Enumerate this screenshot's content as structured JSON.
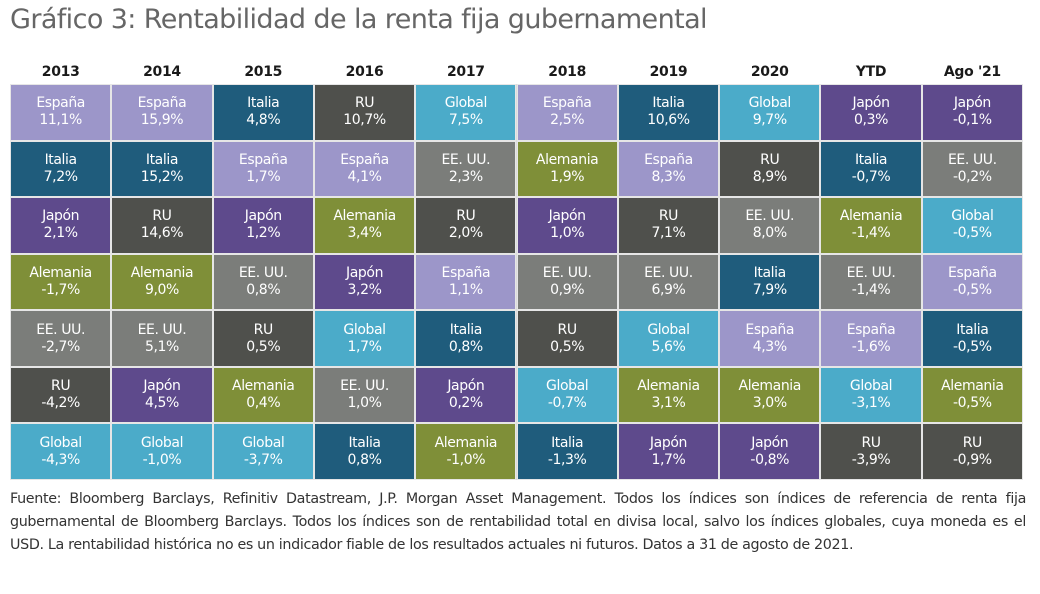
{
  "chart_data": {
    "type": "table",
    "title": "Gráfico 3: Rentabilidad de la renta fija gubernamental",
    "columns": [
      "2013",
      "2014",
      "2015",
      "2016",
      "2017",
      "2018",
      "2019",
      "2020",
      "YTD",
      "Ago '21"
    ],
    "colors": {
      "España": "#9c96c9",
      "Italia": "#1f5c7c",
      "Japón": "#5e4a8c",
      "Alemania": "#7f8f38",
      "EE. UU.": "#7b7d7a",
      "RU": "#4f504c",
      "Global": "#4babc9"
    },
    "ranks": [
      [
        {
          "name": "España",
          "value": "11,1%"
        },
        {
          "name": "España",
          "value": "15,9%"
        },
        {
          "name": "Italia",
          "value": "4,8%"
        },
        {
          "name": "RU",
          "value": "10,7%"
        },
        {
          "name": "Global",
          "value": "7,5%"
        },
        {
          "name": "España",
          "value": "2,5%"
        },
        {
          "name": "Italia",
          "value": "10,6%"
        },
        {
          "name": "Global",
          "value": "9,7%"
        },
        {
          "name": "Japón",
          "value": "0,3%"
        },
        {
          "name": "Japón",
          "value": "-0,1%"
        }
      ],
      [
        {
          "name": "Italia",
          "value": "7,2%"
        },
        {
          "name": "Italia",
          "value": "15,2%"
        },
        {
          "name": "España",
          "value": "1,7%"
        },
        {
          "name": "España",
          "value": "4,1%"
        },
        {
          "name": "EE. UU.",
          "value": "2,3%"
        },
        {
          "name": "Alemania",
          "value": "1,9%"
        },
        {
          "name": "España",
          "value": "8,3%"
        },
        {
          "name": "RU",
          "value": "8,9%"
        },
        {
          "name": "Italia",
          "value": "-0,7%"
        },
        {
          "name": "EE. UU.",
          "value": "-0,2%"
        }
      ],
      [
        {
          "name": "Japón",
          "value": "2,1%"
        },
        {
          "name": "RU",
          "value": "14,6%"
        },
        {
          "name": "Japón",
          "value": "1,2%"
        },
        {
          "name": "Alemania",
          "value": "3,4%"
        },
        {
          "name": "RU",
          "value": "2,0%"
        },
        {
          "name": "Japón",
          "value": "1,0%"
        },
        {
          "name": "RU",
          "value": "7,1%"
        },
        {
          "name": "EE. UU.",
          "value": "8,0%"
        },
        {
          "name": "Alemania",
          "value": "-1,4%"
        },
        {
          "name": "Global",
          "value": "-0,5%"
        }
      ],
      [
        {
          "name": "Alemania",
          "value": "-1,7%"
        },
        {
          "name": "Alemania",
          "value": "9,0%"
        },
        {
          "name": "EE. UU.",
          "value": "0,8%"
        },
        {
          "name": "Japón",
          "value": "3,2%"
        },
        {
          "name": "España",
          "value": "1,1%"
        },
        {
          "name": "EE. UU.",
          "value": "0,9%"
        },
        {
          "name": "EE. UU.",
          "value": "6,9%"
        },
        {
          "name": "Italia",
          "value": "7,9%"
        },
        {
          "name": "EE. UU.",
          "value": "-1,4%"
        },
        {
          "name": "España",
          "value": "-0,5%"
        }
      ],
      [
        {
          "name": "EE. UU.",
          "value": "-2,7%"
        },
        {
          "name": "EE. UU.",
          "value": "5,1%"
        },
        {
          "name": "RU",
          "value": "0,5%"
        },
        {
          "name": "Global",
          "value": "1,7%"
        },
        {
          "name": "Italia",
          "value": "0,8%"
        },
        {
          "name": "RU",
          "value": "0,5%"
        },
        {
          "name": "Global",
          "value": "5,6%"
        },
        {
          "name": "España",
          "value": "4,3%"
        },
        {
          "name": "España",
          "value": "-1,6%"
        },
        {
          "name": "Italia",
          "value": "-0,5%"
        }
      ],
      [
        {
          "name": "RU",
          "value": "-4,2%"
        },
        {
          "name": "Japón",
          "value": "4,5%"
        },
        {
          "name": "Alemania",
          "value": "0,4%"
        },
        {
          "name": "EE. UU.",
          "value": "1,0%"
        },
        {
          "name": "Japón",
          "value": "0,2%"
        },
        {
          "name": "Global",
          "value": "-0,7%"
        },
        {
          "name": "Alemania",
          "value": "3,1%"
        },
        {
          "name": "Alemania",
          "value": "3,0%"
        },
        {
          "name": "Global",
          "value": "-3,1%"
        },
        {
          "name": "Alemania",
          "value": "-0,5%"
        }
      ],
      [
        {
          "name": "Global",
          "value": "-4,3%"
        },
        {
          "name": "Global",
          "value": "-1,0%"
        },
        {
          "name": "Global",
          "value": "-3,7%"
        },
        {
          "name": "Italia",
          "value": "0,8%"
        },
        {
          "name": "Alemania",
          "value": "-1,0%"
        },
        {
          "name": "Italia",
          "value": "-1,3%"
        },
        {
          "name": "Japón",
          "value": "1,7%"
        },
        {
          "name": "Japón",
          "value": "-0,8%"
        },
        {
          "name": "RU",
          "value": "-3,9%"
        },
        {
          "name": "RU",
          "value": "-0,9%"
        }
      ]
    ]
  },
  "footnote": "Fuente: Bloomberg Barclays, Refinitiv Datastream, J.P. Morgan Asset Management. Todos los índices son índices de referencia de renta fija gubernamental de Bloomberg Barclays. Todos los índices son de rentabilidad total en divisa local, salvo los índices globales, cuya moneda es el USD. La rentabilidad histórica no es un indicador fiable de los resultados actuales ni futuros. Datos a 31 de agosto de 2021."
}
